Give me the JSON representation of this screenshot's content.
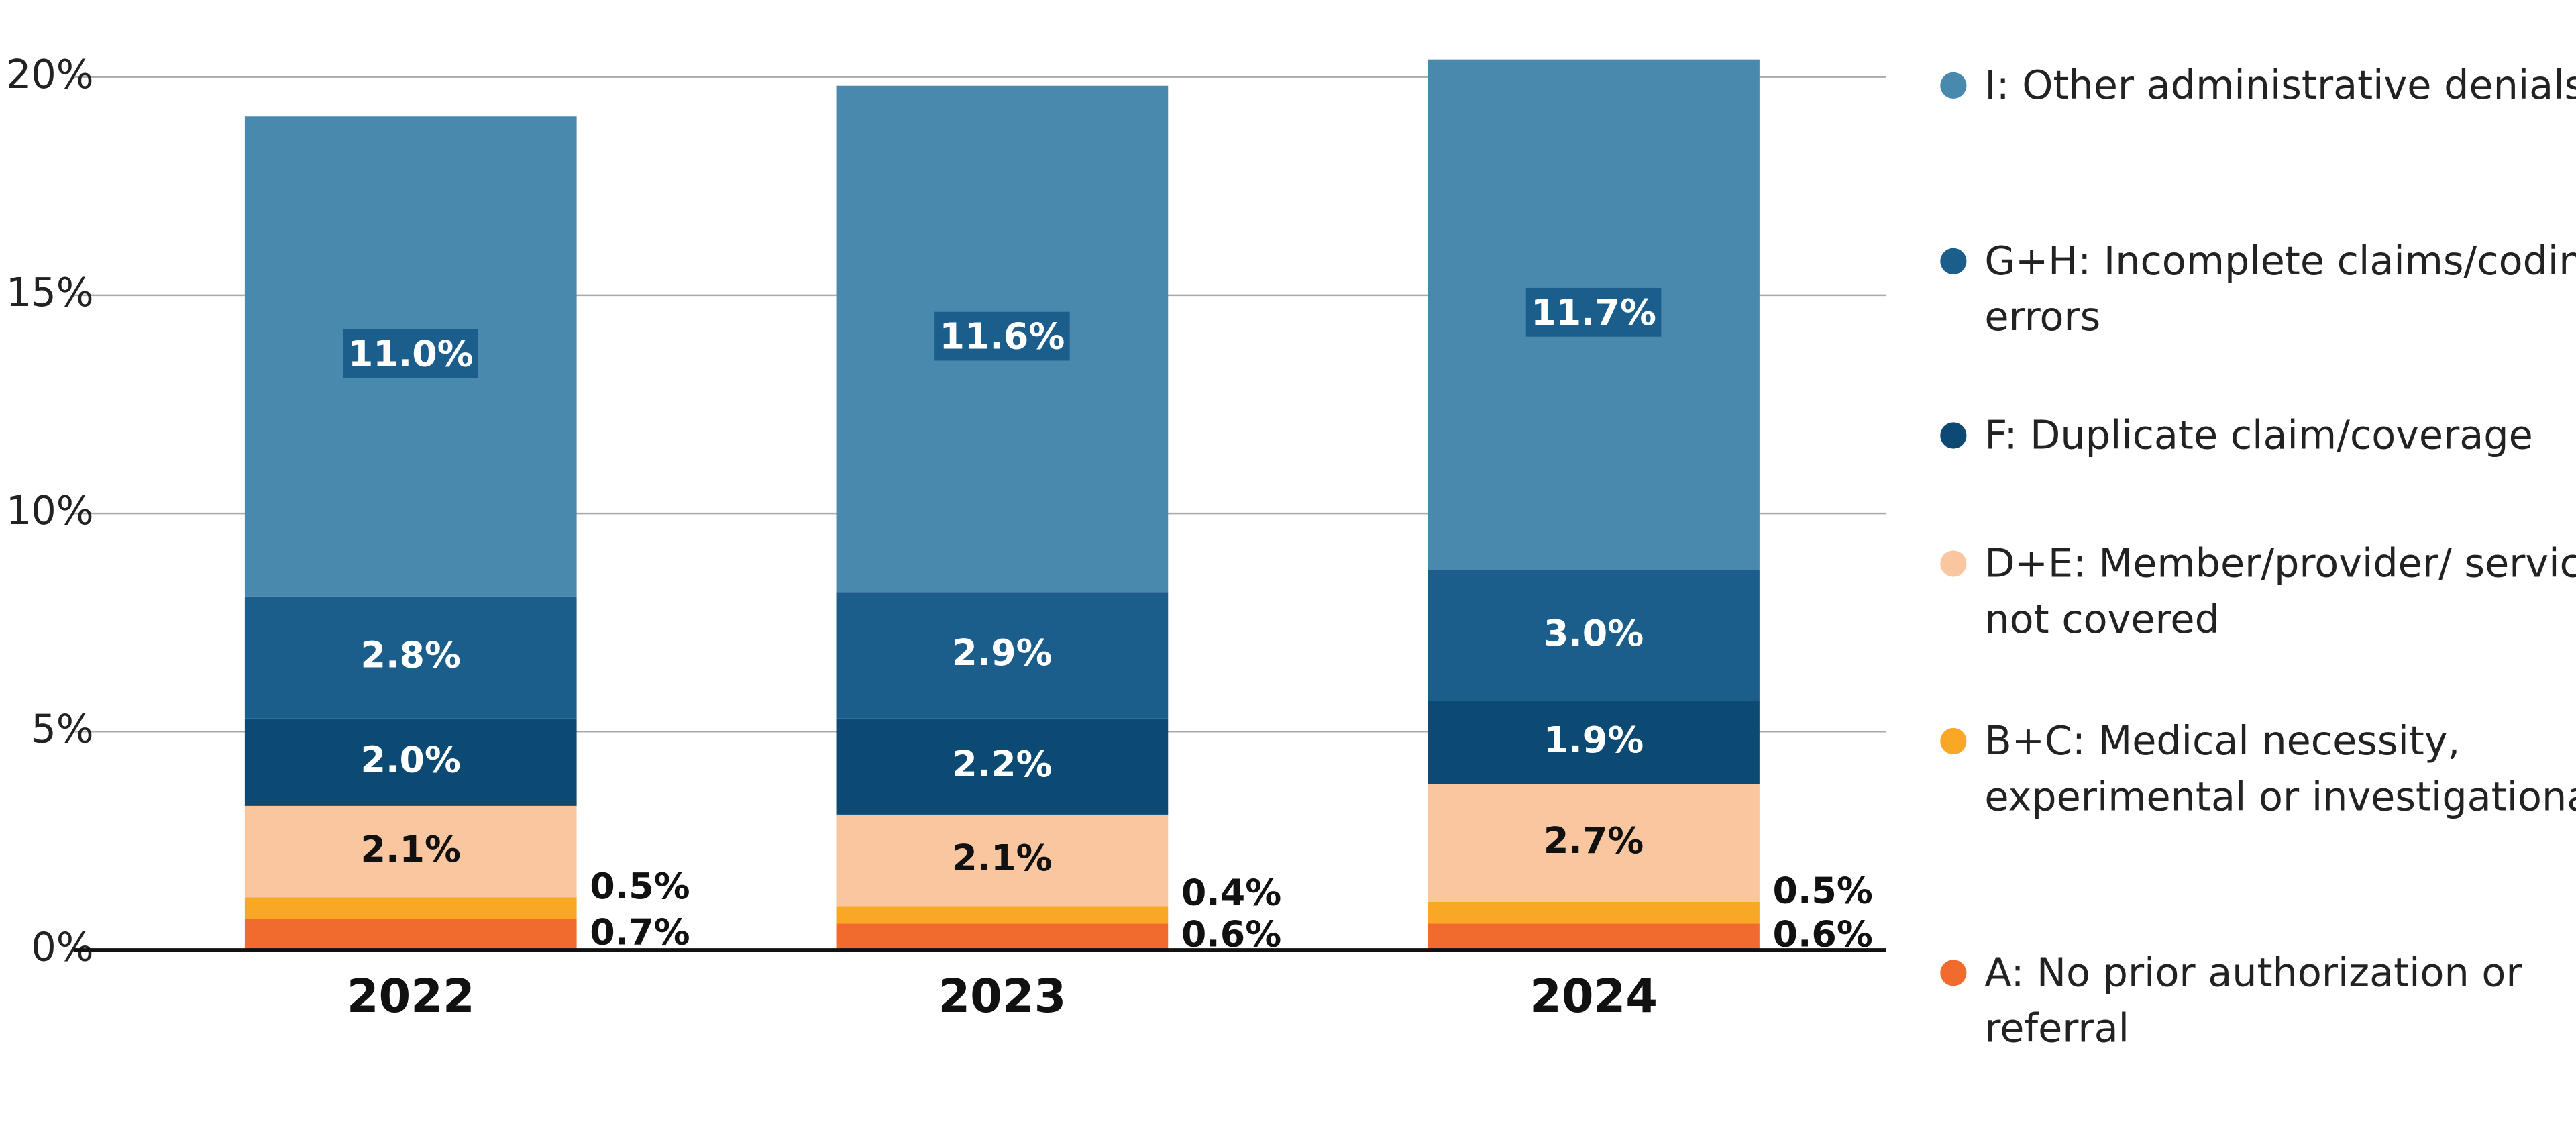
{
  "chart_data": {
    "type": "stacked_bar",
    "categories": [
      "2022",
      "2023",
      "2024"
    ],
    "series": [
      {
        "name": "A: No prior authorization or referral",
        "color": "#f26b2e",
        "values": [
          0.7,
          0.6,
          0.6
        ],
        "value_labels": [
          "0.7%",
          "0.6%",
          "0.6%"
        ]
      },
      {
        "name": "B+C: Medical necessity, experimental or investigational",
        "color": "#f9a825",
        "values": [
          0.5,
          0.4,
          0.5
        ],
        "value_labels": [
          "0.5%",
          "0.4%",
          "0.5%"
        ]
      },
      {
        "name": "D+E: Member/provider/ service not covered",
        "color": "#f9c6a0",
        "values": [
          2.1,
          2.1,
          2.7
        ],
        "value_labels": [
          "2.1%",
          "2.1%",
          "2.7%"
        ]
      },
      {
        "name": "F: Duplicate claim/coverage",
        "color": "#0d4a73",
        "values": [
          2.0,
          2.2,
          1.9
        ],
        "value_labels": [
          "2.0%",
          "2.2%",
          "1.9%"
        ]
      },
      {
        "name": "G+H: Incomplete claims/coding errors",
        "color": "#1b5e8c",
        "values": [
          2.8,
          2.9,
          3.0
        ],
        "value_labels": [
          "2.8%",
          "2.9%",
          "3.0%"
        ]
      },
      {
        "name": "I: Other administrative denials",
        "color": "#4a89ae",
        "values": [
          11.0,
          11.6,
          11.7
        ],
        "value_labels": [
          "11.0%",
          "11.6%",
          "11.7%"
        ]
      }
    ],
    "ylim": [
      0,
      21.5
    ],
    "yticks": [
      {
        "value": 0,
        "label": "0%"
      },
      {
        "value": 5,
        "label": "5%"
      },
      {
        "value": 10,
        "label": "10%"
      },
      {
        "value": 15,
        "label": "15%"
      },
      {
        "value": 20,
        "label": "20%"
      }
    ],
    "grid": true,
    "legend": "right"
  }
}
